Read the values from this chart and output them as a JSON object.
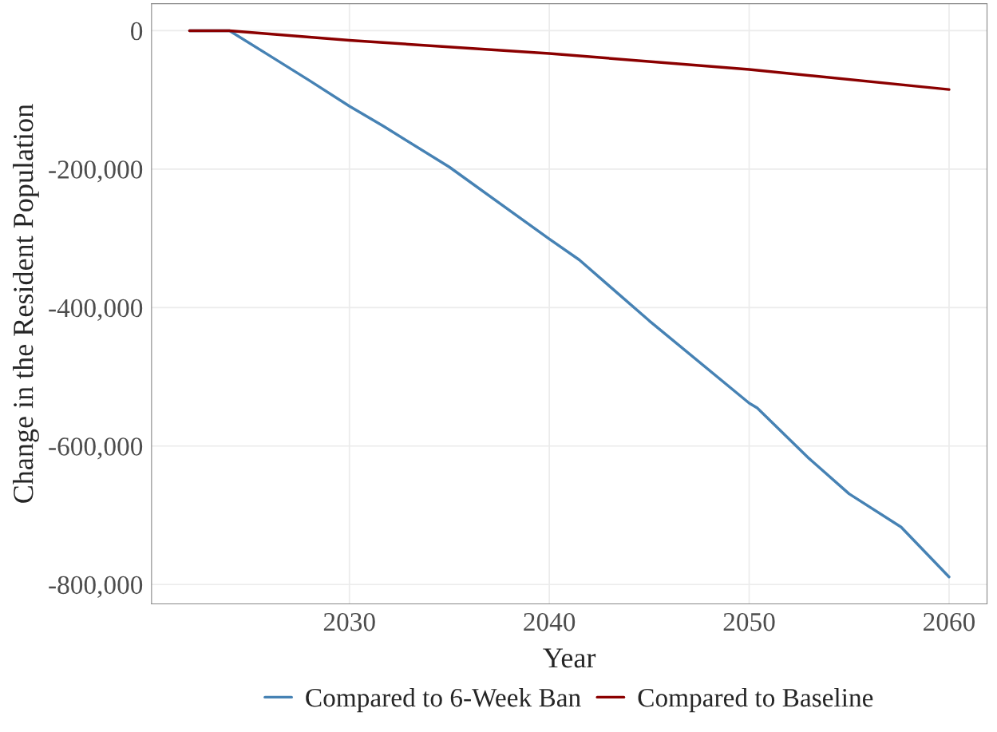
{
  "chart_data": {
    "type": "line",
    "xlabel": "Year",
    "ylabel": "Change in the Resident Population",
    "xlim": [
      2020.1,
      2061.9
    ],
    "xticks": [
      2030,
      2040,
      2050,
      2060
    ],
    "ylim": [
      -828000,
      39000
    ],
    "yticks": [
      {
        "value": 0,
        "label": "0"
      },
      {
        "value": -200000,
        "label": "-200,000"
      },
      {
        "value": -400000,
        "label": "-400,000"
      },
      {
        "value": -600000,
        "label": "-600,000"
      },
      {
        "value": -800000,
        "label": "-800,000"
      }
    ],
    "grid": true,
    "legend": "bottom",
    "line_style": "solid",
    "marker": "none",
    "series": [
      {
        "name": "Compared to 6-Week Ban",
        "color": "#4682b4",
        "x": [
          2022,
          2024,
          2026,
          2028,
          2030,
          2031.7,
          2035,
          2040,
          2041.5,
          2045,
          2050,
          2050.4,
          2053,
          2055,
          2057.6,
          2060
        ],
        "values": [
          0,
          0,
          -36000,
          -72000,
          -109000,
          -138000,
          -197000,
          -301000,
          -331000,
          -419000,
          -538000,
          -545000,
          -618000,
          -669000,
          -717000,
          -789000
        ]
      },
      {
        "name": "Compared to Baseline",
        "color": "#8b0000",
        "x": [
          2022,
          2024,
          2030,
          2040,
          2050,
          2060
        ],
        "values": [
          0,
          0,
          -14000,
          -33000,
          -56000,
          -85000
        ]
      }
    ]
  }
}
